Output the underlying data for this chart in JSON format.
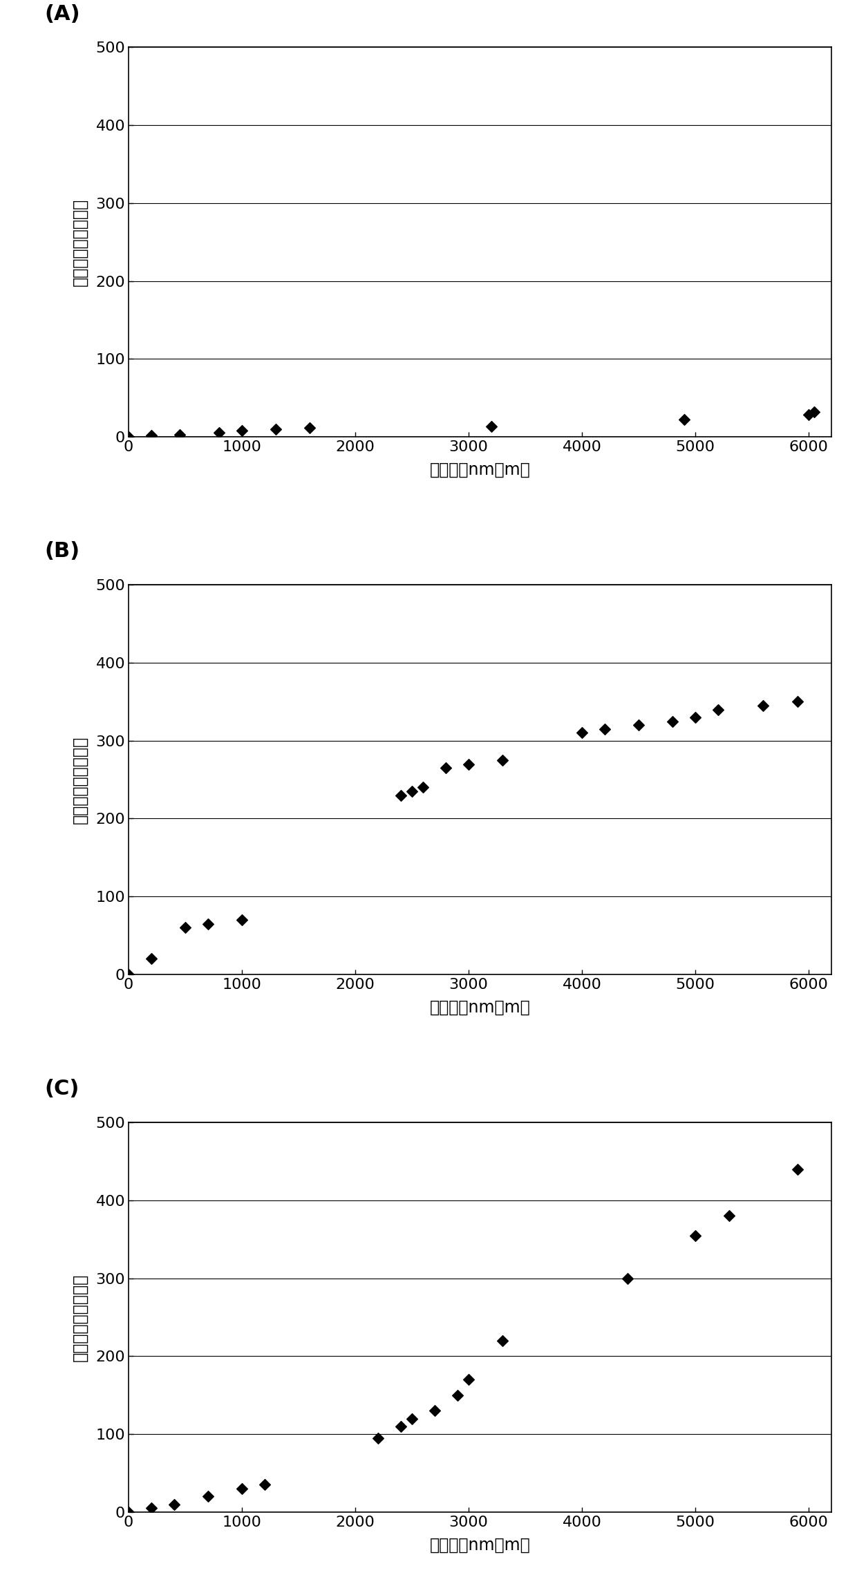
{
  "panels": [
    "(A)",
    "(B)",
    "(C)"
  ],
  "xlabel": "制肆量（nm・m）",
  "ylabel": "异常放电次数（次）",
  "xlim": [
    0,
    6200
  ],
  "ylim": [
    0,
    500
  ],
  "xticks": [
    0,
    1000,
    2000,
    3000,
    4000,
    5000,
    6000
  ],
  "yticks": [
    0,
    100,
    200,
    300,
    400,
    500
  ],
  "A_x": [
    0,
    200,
    450,
    800,
    1000,
    1300,
    1600,
    3200,
    4900,
    6000,
    6050
  ],
  "A_y": [
    0,
    2,
    3,
    5,
    8,
    10,
    12,
    13,
    22,
    28,
    32
  ],
  "B_x": [
    0,
    200,
    500,
    700,
    1000,
    2400,
    2500,
    2600,
    2800,
    3000,
    3300,
    4000,
    4200,
    4500,
    4800,
    5000,
    5200,
    5600,
    5900
  ],
  "B_y": [
    0,
    20,
    60,
    65,
    70,
    230,
    235,
    240,
    265,
    270,
    275,
    310,
    315,
    320,
    325,
    330,
    340,
    345,
    350
  ],
  "C_x": [
    0,
    200,
    400,
    700,
    1000,
    1200,
    2200,
    2400,
    2500,
    2700,
    2900,
    3000,
    3300,
    4400,
    5000,
    5300,
    5900
  ],
  "C_y": [
    0,
    5,
    10,
    20,
    30,
    35,
    95,
    110,
    120,
    130,
    150,
    170,
    220,
    300,
    355,
    380,
    440
  ],
  "marker": "D",
  "marker_color": "black",
  "marker_size": 8,
  "bg_color": "white",
  "panel_label_fontsize": 22,
  "tick_fontsize": 16,
  "axis_label_fontsize": 17
}
